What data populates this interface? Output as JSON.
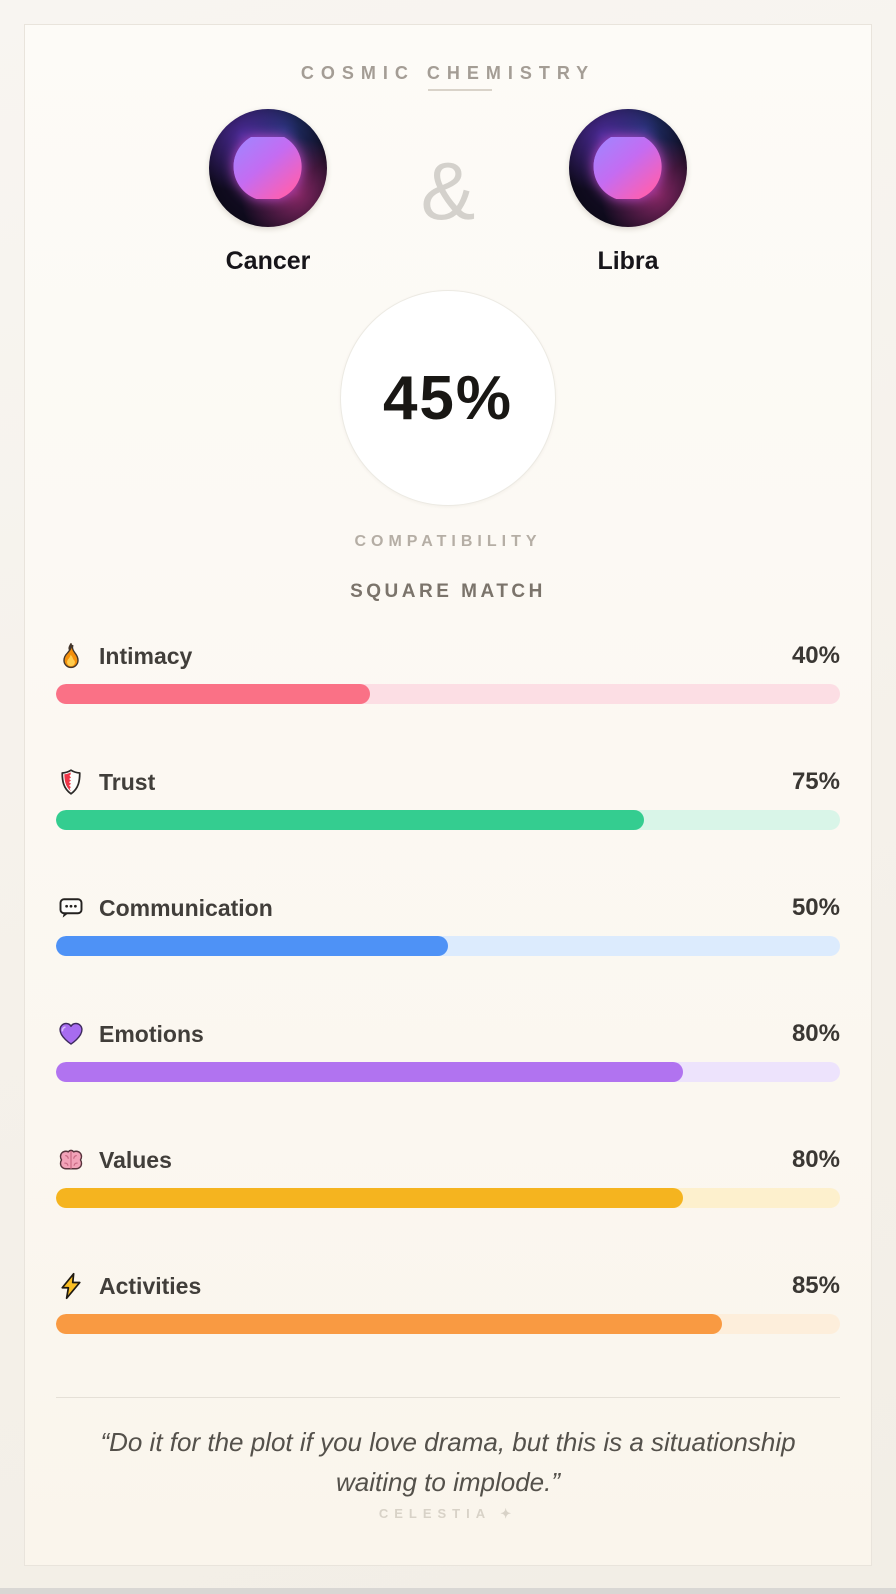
{
  "header": {
    "title": "COSMIC CHEMISTRY"
  },
  "pair": {
    "left": {
      "name": "Cancer",
      "symbol": "♋",
      "icon": "cancer-zodiac-icon"
    },
    "separator": "&",
    "right": {
      "name": "Libra",
      "symbol": "♎",
      "icon": "libra-zodiac-icon"
    }
  },
  "score": {
    "value": "45%",
    "label": "COMPATIBILITY",
    "match_type": "SQUARE MATCH"
  },
  "stats": [
    {
      "label": "Intimacy",
      "display": "40%",
      "value": 40,
      "icon": "fire-icon",
      "fill": "#fa7186",
      "track": "#fcdee4"
    },
    {
      "label": "Trust",
      "display": "75%",
      "value": 75,
      "icon": "shield-icon",
      "fill": "#34cd90",
      "track": "#d9f5e8"
    },
    {
      "label": "Communication",
      "display": "50%",
      "value": 50,
      "icon": "speech-bubble-icon",
      "fill": "#4e92f6",
      "track": "#dcebfd"
    },
    {
      "label": "Emotions",
      "display": "80%",
      "value": 80,
      "icon": "purple-heart-icon",
      "fill": "#b173f0",
      "track": "#ede3fc"
    },
    {
      "label": "Values",
      "display": "80%",
      "value": 80,
      "icon": "brain-icon",
      "fill": "#f5b41f",
      "track": "#fdf0cd"
    },
    {
      "label": "Activities",
      "display": "85%",
      "value": 85,
      "icon": "lightning-icon",
      "fill": "#f99a42",
      "track": "#fdeedb"
    }
  ],
  "quote": "“Do it for the plot if you love drama, but this is a situationship waiting to implode.”",
  "watermark": {
    "text": "CELESTIA",
    "symbol": "✦"
  }
}
